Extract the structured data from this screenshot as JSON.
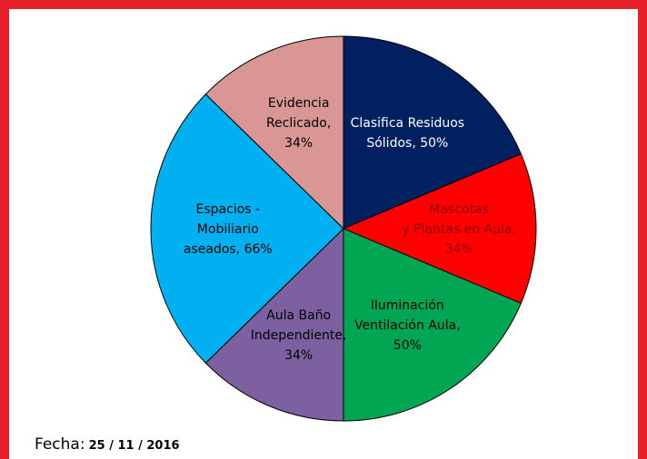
{
  "chart_data": {
    "type": "pie",
    "categories": [
      "Clasifica Residuos Sólidos",
      "Mascotas y Plantas en Aula",
      "Iluminación Ventilación Aula",
      "Aula Baño Independiente",
      "Espacios - Mobiliario aseados",
      "Evidencia Reclicado"
    ],
    "values": [
      50,
      34,
      50,
      34,
      66,
      34
    ],
    "value_labels": [
      "Clasifica  Residuos\nSólidos, 50%",
      "Mascotas\ny Plantas  en Aula,\n34%",
      "Iluminación\nVentilación  Aula,\n50%",
      "Aula Baño\nIndependiente,\n34%",
      "Espacios  -\nMobiliario\naseados, 66%",
      "Evidencia\nReclicado,\n34%"
    ],
    "colors": [
      "#002060",
      "#ff0000",
      "#00a651",
      "#7d60a0",
      "#00b0f0",
      "#d99694"
    ],
    "label_colors": [
      "#ffffff",
      "#8b0000",
      "#000000",
      "#000000",
      "#000000",
      "#000000"
    ]
  },
  "footer": {
    "label": "Fecha:",
    "date": "25 / 11 / 2016"
  }
}
